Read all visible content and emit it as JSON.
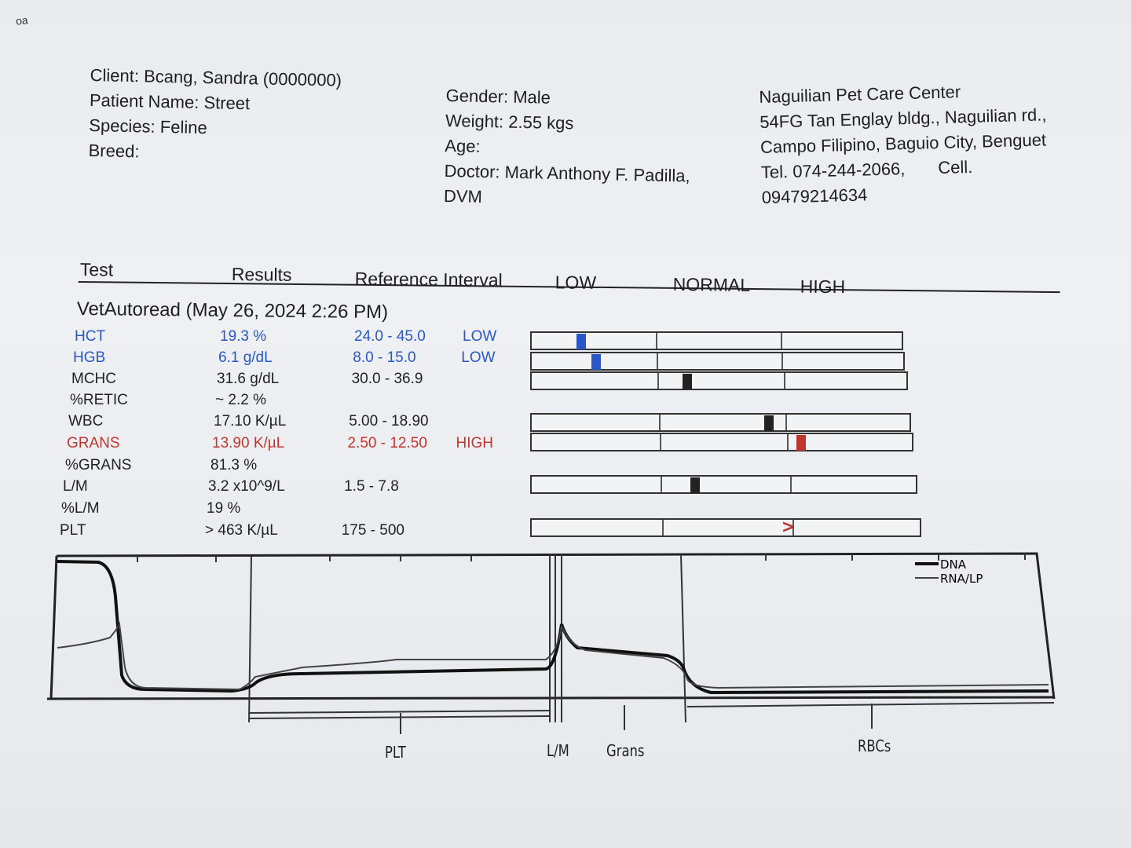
{
  "corner_mark": "oa",
  "client_block": {
    "client": "Client: Bcang, Sandra (0000000)",
    "patient": "Patient Name: Street",
    "species": "Species: Feline",
    "breed": "Breed:"
  },
  "patient_block": {
    "gender": "Gender: Male",
    "weight": "Weight: 2.55 kgs",
    "age": "Age:",
    "doctor": "Doctor: Mark Anthony F. Padilla, DVM"
  },
  "clinic_block": {
    "name": "Naguilian Pet Care Center",
    "address": "54FG Tan Englay bldg., Naguilian rd., Campo Filipino, Baguio City, Benguet",
    "tel": "Tel. 074-244-2066,",
    "cell": "Cell. 09479214634"
  },
  "table_header": {
    "test": "Test",
    "results": "Results",
    "reference": "Reference Interval",
    "low": "LOW",
    "normal": "NORMAL",
    "high": "HIGH"
  },
  "section_title": "VetAutoread (May 26, 2024 2:26 PM)",
  "colors": {
    "low": "#2a57c6",
    "high": "#c0362c",
    "normal": "#222222"
  },
  "results": [
    {
      "test": "HCT",
      "result": "19.3 %",
      "reference": "24.0 - 45.0",
      "flag": "LOW",
      "status": "low",
      "gauge_level": 0.12
    },
    {
      "test": "HGB",
      "result": "6.1 g/dL",
      "reference": "8.0 - 15.0",
      "flag": "LOW",
      "status": "low",
      "gauge_level": 0.16
    },
    {
      "test": "MCHC",
      "result": "31.6 g/dL",
      "reference": "30.0 - 36.9",
      "flag": "",
      "status": "normal",
      "gauge_level": 0.4
    },
    {
      "test": "%RETIC",
      "result": "~ 2.2 %",
      "reference": "",
      "flag": "",
      "status": "normal"
    },
    {
      "test": "WBC",
      "result": "17.10 K/µL",
      "reference": "5.00 - 18.90",
      "flag": "",
      "status": "normal",
      "gauge_level": 0.61
    },
    {
      "test": "GRANS",
      "result": "13.90 K/µL",
      "reference": "2.50 - 12.50",
      "flag": "HIGH",
      "status": "high",
      "gauge_level": 0.69
    },
    {
      "test": "%GRANS",
      "result": "81.3 %",
      "reference": "",
      "flag": "",
      "status": "normal"
    },
    {
      "test": "L/M",
      "result": "3.2 x10^9/L",
      "reference": "1.5 - 7.8",
      "flag": "",
      "status": "normal",
      "gauge_level": 0.41
    },
    {
      "test": "%L/M",
      "result": "19 %",
      "reference": "",
      "flag": "",
      "status": "normal"
    },
    {
      "test": "PLT",
      "result": "> 463 K/µL",
      "reference": "175 - 500",
      "flag": "",
      "status": "normal",
      "gauge_level": 0.64,
      "gauge_arrow": ">"
    }
  ],
  "histogram": {
    "legend": [
      "DNA",
      "RNA/LP"
    ],
    "labels": {
      "plt": "PLT",
      "lm": "L/M",
      "grans": "Grans",
      "rbcs": "RBCs"
    }
  }
}
